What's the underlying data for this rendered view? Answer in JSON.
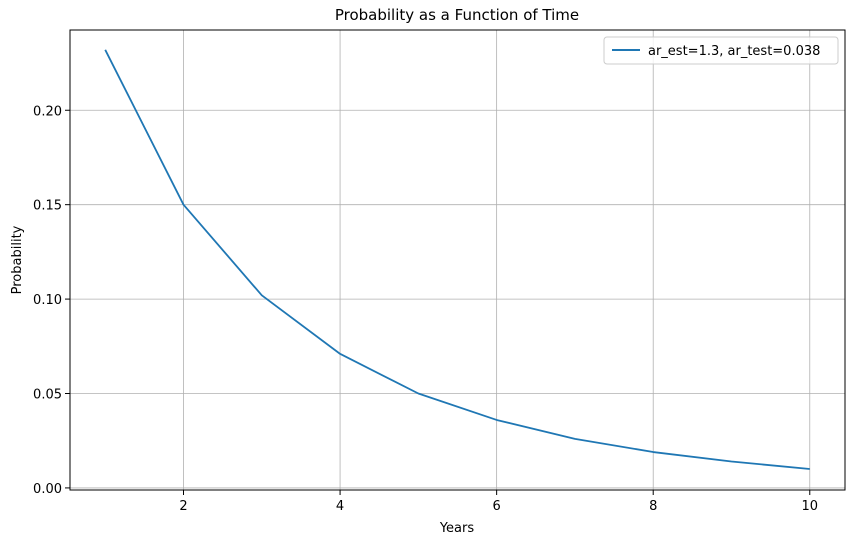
{
  "chart_data": {
    "type": "line",
    "title": "Probability as a Function of Time",
    "xlabel": "Years",
    "ylabel": "Probability",
    "xlim": [
      0.55,
      10.45
    ],
    "ylim": [
      -0.0011,
      0.2425
    ],
    "xticks": [
      2,
      4,
      6,
      8,
      10
    ],
    "xtick_labels": [
      "2",
      "4",
      "6",
      "8",
      "10"
    ],
    "yticks": [
      0.0,
      0.05,
      0.1,
      0.15,
      0.2
    ],
    "ytick_labels": [
      "0.00",
      "0.05",
      "0.10",
      "0.15",
      "0.20"
    ],
    "grid": true,
    "legend_position": "upper-right",
    "series": [
      {
        "name": "ar_est=1.3, ar_test=0.038",
        "color": "#1f77b4",
        "x": [
          1,
          2,
          3,
          4,
          5,
          6,
          7,
          8,
          9,
          10
        ],
        "y": [
          0.232,
          0.15,
          0.102,
          0.071,
          0.05,
          0.036,
          0.026,
          0.019,
          0.014,
          0.01
        ]
      }
    ]
  }
}
